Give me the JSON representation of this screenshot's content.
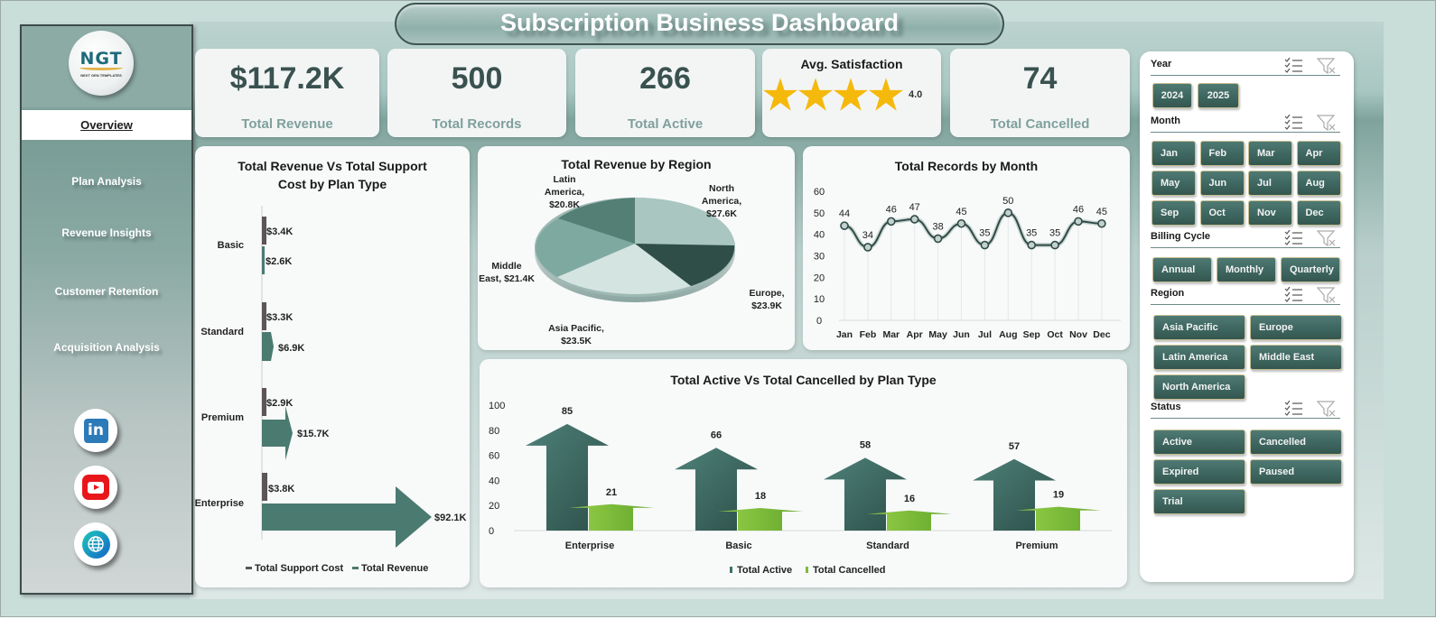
{
  "title": "Subscription Business Dashboard",
  "logo": {
    "text": "NGT",
    "subtext": "NEXT GEN TEMPLATES"
  },
  "sidebar": {
    "items": [
      {
        "label": "Overview",
        "active": true
      },
      {
        "label": "Plan Analysis",
        "active": false
      },
      {
        "label": "Revenue Insights",
        "active": false
      },
      {
        "label": "Customer Retention",
        "active": false
      },
      {
        "label": "Acquisition Analysis",
        "active": false
      }
    ],
    "social": [
      {
        "name": "linkedin-icon",
        "glyph": "in"
      },
      {
        "name": "youtube-icon"
      },
      {
        "name": "globe-icon"
      }
    ]
  },
  "kpis": {
    "revenue": {
      "value": "$117.2K",
      "label": "Total Revenue"
    },
    "records": {
      "value": "500",
      "label": "Total Records"
    },
    "active": {
      "value": "266",
      "label": "Total Active"
    },
    "satisfaction": {
      "title": "Avg. Satisfaction",
      "stars": 4,
      "value": "4.0"
    },
    "cancelled": {
      "value": "74",
      "label": "Total Cancelled"
    }
  },
  "filters": {
    "year": {
      "label": "Year",
      "options": [
        "2024",
        "2025"
      ]
    },
    "month": {
      "label": "Month",
      "options": [
        "Jan",
        "Feb",
        "Mar",
        "Apr",
        "May",
        "Jun",
        "Jul",
        "Aug",
        "Sep",
        "Oct",
        "Nov",
        "Dec"
      ]
    },
    "billing": {
      "label": "Billing Cycle",
      "options": [
        "Annual",
        "Monthly",
        "Quarterly"
      ]
    },
    "region": {
      "label": "Region",
      "options": [
        "Asia Pacific",
        "Europe",
        "Latin America",
        "Middle East",
        "North America"
      ]
    },
    "status": {
      "label": "Status",
      "options": [
        "Active",
        "Cancelled",
        "Expired",
        "Paused",
        "Trial"
      ]
    }
  },
  "colors": {
    "accent_dark": "#3e6660",
    "revenue_arrow": "#4a7a70",
    "support_bar": "#5b5556",
    "active_arrow": "#3f6f66",
    "cancelled_arrow": "#7cbd3a",
    "star": "#f5b90c",
    "kpi_value": "#3a524f",
    "kpi_label": "#7fa09b"
  },
  "chart_data": [
    {
      "type": "bar",
      "orientation": "horizontal",
      "title": "Total Revenue Vs Total Support Cost by Plan Type",
      "title_line1": "Total Revenue  Vs Total Support",
      "title_line2": "Cost by Plan Type",
      "categories": [
        "Basic",
        "Standard",
        "Premium",
        "Enterprise"
      ],
      "series": [
        {
          "name": "Total Support Cost",
          "values": [
            3.4,
            3.3,
            2.9,
            3.8
          ],
          "labels": [
            "$3.4K",
            "$3.3K",
            "$2.9K",
            "$3.8K"
          ]
        },
        {
          "name": "Total Revenue",
          "values": [
            2.6,
            6.9,
            15.7,
            92.1
          ],
          "labels": [
            "$2.6K",
            "$6.9K",
            "$15.7K",
            "$92.1K"
          ]
        }
      ],
      "legend": [
        "Total Support Cost",
        "Total Revenue"
      ],
      "legend_position": "bottom",
      "unit": "$K"
    },
    {
      "type": "pie",
      "title": "Total Revenue by Region",
      "categories": [
        "North America",
        "Europe",
        "Asia Pacific",
        "Middle East",
        "Latin America"
      ],
      "values": [
        27.6,
        23.9,
        23.5,
        21.4,
        20.8
      ],
      "labels": [
        {
          "l1": "North",
          "l2": "America,",
          "l3": "$27.6K"
        },
        {
          "l1": "Europe,",
          "l2": "$23.9K"
        },
        {
          "l1": "Asia Pacific,",
          "l2": "$23.5K"
        },
        {
          "l1": "Middle",
          "l2": "East, $21.4K"
        },
        {
          "l1": "Latin",
          "l2": "America,",
          "l3": "$20.8K"
        }
      ],
      "unit": "$K"
    },
    {
      "type": "line",
      "title": "Total Records by Month",
      "categories": [
        "Jan",
        "Feb",
        "Mar",
        "Apr",
        "May",
        "Jun",
        "Jul",
        "Aug",
        "Sep",
        "Oct",
        "Nov",
        "Dec"
      ],
      "values": [
        44,
        34,
        46,
        47,
        38,
        45,
        35,
        50,
        35,
        35,
        46,
        45
      ],
      "ylim": [
        0,
        60
      ],
      "yticks": [
        "0",
        "10",
        "20",
        "30",
        "40",
        "50",
        "60"
      ],
      "grid": "vertical"
    },
    {
      "type": "bar",
      "title": "Total Active Vs Total Cancelled by Plan Type",
      "categories": [
        "Enterprise",
        "Basic",
        "Standard",
        "Premium"
      ],
      "series": [
        {
          "name": "Total Active",
          "values": [
            85,
            66,
            58,
            57
          ]
        },
        {
          "name": "Total Cancelled",
          "values": [
            21,
            18,
            16,
            19
          ]
        }
      ],
      "ylim": [
        0,
        100
      ],
      "yticks": [
        "0",
        "20",
        "40",
        "60",
        "80",
        "100"
      ],
      "legend": [
        "Total Active",
        "Total Cancelled"
      ],
      "legend_position": "bottom"
    }
  ]
}
